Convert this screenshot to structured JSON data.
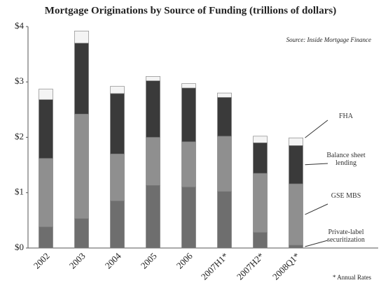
{
  "chart_data": {
    "type": "stacked_bar",
    "title": "Mortgage Originations by Source of Funding (trillions of dollars)",
    "annotations": [
      "Source: Inside Mortgage Finance",
      "* Annual Rates"
    ],
    "categories": [
      "2002",
      "2003",
      "2004",
      "2005",
      "2006",
      "2007H1*",
      "2007H2*",
      "2008Q1*"
    ],
    "series": [
      {
        "name": "Private-label securitization",
        "color": "#6e6e6e",
        "values": [
          0.38,
          0.53,
          0.85,
          1.13,
          1.1,
          1.02,
          0.28,
          0.05
        ]
      },
      {
        "name": "GSE MBS",
        "color": "#8f8f8f",
        "values": [
          1.24,
          1.89,
          0.85,
          0.87,
          0.82,
          1.0,
          1.07,
          1.11
        ]
      },
      {
        "name": "Balance sheet lending",
        "color": "#3a3a3a",
        "values": [
          1.06,
          1.28,
          1.09,
          1.02,
          0.97,
          0.7,
          0.55,
          0.69
        ]
      },
      {
        "name": "FHA",
        "color": "#f4f4f4",
        "values": [
          0.19,
          0.22,
          0.13,
          0.08,
          0.08,
          0.08,
          0.12,
          0.14
        ]
      }
    ],
    "ylim": [
      0,
      4
    ],
    "yticks": [
      {
        "value": 0,
        "label": "$0"
      },
      {
        "value": 1,
        "label": "$1"
      },
      {
        "value": 2,
        "label": "$2"
      },
      {
        "value": 3,
        "label": "$3"
      },
      {
        "value": 4,
        "label": "$4"
      }
    ],
    "grid": false
  }
}
